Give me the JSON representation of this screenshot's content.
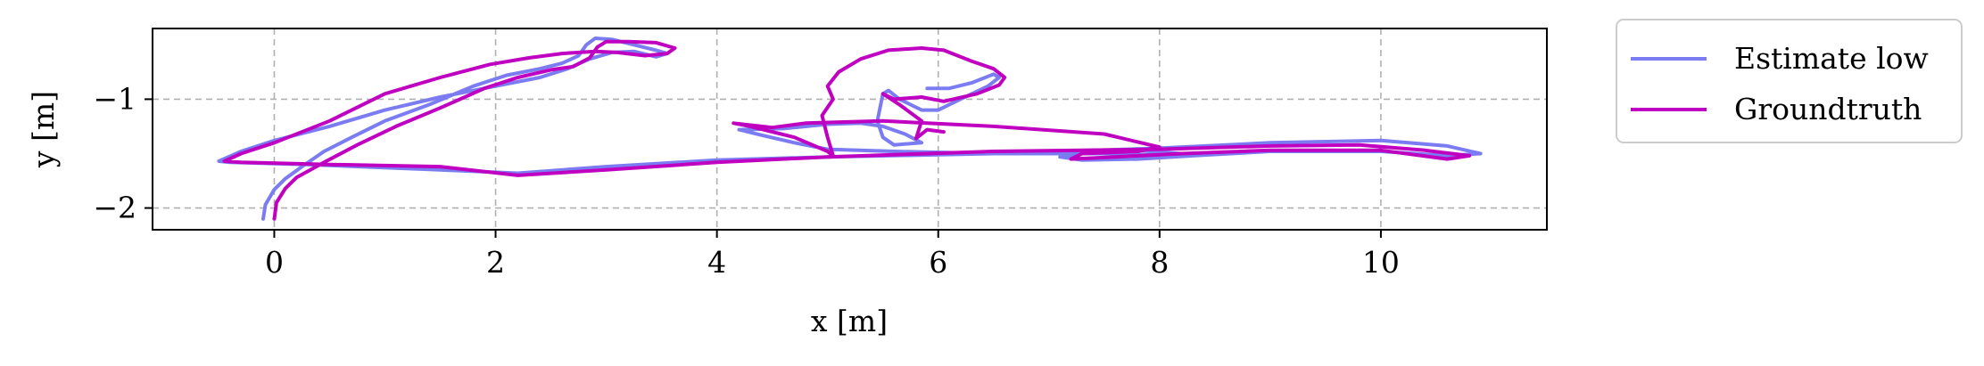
{
  "chart_data": {
    "type": "line",
    "xlabel": "x [m]",
    "ylabel": "y [m]",
    "xlim": [
      -1.1,
      11.5
    ],
    "ylim": [
      -2.2,
      -0.35
    ],
    "xticks": [
      0,
      2,
      4,
      6,
      8,
      10
    ],
    "yticks": [
      -2,
      -1
    ],
    "xtick_labels": [
      "0",
      "2",
      "4",
      "6",
      "8",
      "10"
    ],
    "ytick_labels": [
      "−2",
      "−1"
    ],
    "grid": true,
    "grid_style": "dashed",
    "legend_position": "outside upper right",
    "series": [
      {
        "name": "Estimate low",
        "color": "#7b7bf2",
        "points": [
          [
            -0.1,
            -2.1
          ],
          [
            -0.08,
            -1.97
          ],
          [
            0.0,
            -1.83
          ],
          [
            0.1,
            -1.73
          ],
          [
            0.25,
            -1.62
          ],
          [
            0.45,
            -1.48
          ],
          [
            0.7,
            -1.35
          ],
          [
            1.0,
            -1.2
          ],
          [
            1.4,
            -1.05
          ],
          [
            1.8,
            -0.88
          ],
          [
            2.1,
            -0.78
          ],
          [
            2.4,
            -0.72
          ],
          [
            2.6,
            -0.67
          ],
          [
            2.75,
            -0.6
          ],
          [
            2.82,
            -0.5
          ],
          [
            2.9,
            -0.44
          ],
          [
            3.05,
            -0.45
          ],
          [
            3.25,
            -0.5
          ],
          [
            3.45,
            -0.55
          ],
          [
            3.55,
            -0.58
          ],
          [
            3.45,
            -0.61
          ],
          [
            3.25,
            -0.56
          ],
          [
            3.05,
            -0.57
          ],
          [
            2.85,
            -0.63
          ],
          [
            2.65,
            -0.72
          ],
          [
            2.4,
            -0.8
          ],
          [
            2.0,
            -0.88
          ],
          [
            1.5,
            -0.98
          ],
          [
            1.0,
            -1.1
          ],
          [
            0.5,
            -1.25
          ],
          [
            0.0,
            -1.38
          ],
          [
            -0.3,
            -1.48
          ],
          [
            -0.5,
            -1.57
          ],
          [
            -0.4,
            -1.58
          ],
          [
            0.3,
            -1.6
          ],
          [
            1.5,
            -1.65
          ],
          [
            2.2,
            -1.68
          ],
          [
            3.0,
            -1.62
          ],
          [
            4.0,
            -1.56
          ],
          [
            5.0,
            -1.53
          ],
          [
            6.5,
            -1.5
          ],
          [
            8.0,
            -1.45
          ],
          [
            9.0,
            -1.4
          ],
          [
            10.0,
            -1.38
          ],
          [
            10.6,
            -1.43
          ],
          [
            10.9,
            -1.5
          ],
          [
            10.6,
            -1.52
          ],
          [
            10.0,
            -1.48
          ],
          [
            9.0,
            -1.48
          ],
          [
            8.3,
            -1.52
          ],
          [
            7.8,
            -1.55
          ],
          [
            7.3,
            -1.56
          ],
          [
            7.1,
            -1.53
          ],
          [
            7.3,
            -1.5
          ],
          [
            7.8,
            -1.47
          ],
          [
            8.2,
            -1.5
          ],
          [
            8.25,
            -1.52
          ],
          [
            7.5,
            -1.5
          ],
          [
            6.5,
            -1.5
          ],
          [
            5.6,
            -1.48
          ],
          [
            5.0,
            -1.46
          ],
          [
            4.7,
            -1.4
          ],
          [
            4.4,
            -1.33
          ],
          [
            4.2,
            -1.28
          ],
          [
            4.6,
            -1.27
          ],
          [
            5.0,
            -1.23
          ],
          [
            5.3,
            -1.22
          ],
          [
            5.5,
            -1.25
          ],
          [
            5.7,
            -1.32
          ],
          [
            5.85,
            -1.4
          ],
          [
            5.6,
            -1.42
          ],
          [
            5.5,
            -1.35
          ],
          [
            5.45,
            -1.2
          ],
          [
            5.5,
            -0.95
          ],
          [
            5.55,
            -0.92
          ],
          [
            5.65,
            -1.0
          ],
          [
            5.85,
            -1.1
          ],
          [
            6.0,
            -1.1
          ],
          [
            6.2,
            -1.0
          ],
          [
            6.45,
            -0.88
          ],
          [
            6.55,
            -0.8
          ],
          [
            6.5,
            -0.77
          ],
          [
            6.3,
            -0.85
          ],
          [
            6.1,
            -0.9
          ],
          [
            5.9,
            -0.9
          ]
        ]
      },
      {
        "name": "Groundtruth",
        "color": "#c000c0",
        "points": [
          [
            0.0,
            -2.1
          ],
          [
            0.02,
            -1.95
          ],
          [
            0.1,
            -1.82
          ],
          [
            0.2,
            -1.72
          ],
          [
            0.45,
            -1.58
          ],
          [
            0.75,
            -1.42
          ],
          [
            1.1,
            -1.25
          ],
          [
            1.5,
            -1.08
          ],
          [
            1.9,
            -0.9
          ],
          [
            2.2,
            -0.8
          ],
          [
            2.5,
            -0.73
          ],
          [
            2.7,
            -0.7
          ],
          [
            2.85,
            -0.62
          ],
          [
            2.92,
            -0.52
          ],
          [
            3.0,
            -0.47
          ],
          [
            3.2,
            -0.47
          ],
          [
            3.45,
            -0.48
          ],
          [
            3.62,
            -0.53
          ],
          [
            3.55,
            -0.58
          ],
          [
            3.35,
            -0.6
          ],
          [
            3.1,
            -0.57
          ],
          [
            2.9,
            -0.56
          ],
          [
            2.6,
            -0.58
          ],
          [
            2.3,
            -0.62
          ],
          [
            1.95,
            -0.68
          ],
          [
            1.5,
            -0.8
          ],
          [
            1.0,
            -0.95
          ],
          [
            0.5,
            -1.2
          ],
          [
            0.0,
            -1.4
          ],
          [
            -0.3,
            -1.5
          ],
          [
            -0.45,
            -1.57
          ],
          [
            -0.3,
            -1.58
          ],
          [
            0.5,
            -1.6
          ],
          [
            1.5,
            -1.62
          ],
          [
            2.2,
            -1.7
          ],
          [
            3.0,
            -1.65
          ],
          [
            4.0,
            -1.58
          ],
          [
            5.0,
            -1.53
          ],
          [
            6.5,
            -1.48
          ],
          [
            8.0,
            -1.46
          ],
          [
            9.0,
            -1.43
          ],
          [
            9.8,
            -1.42
          ],
          [
            10.4,
            -1.47
          ],
          [
            10.8,
            -1.52
          ],
          [
            10.6,
            -1.55
          ],
          [
            10.0,
            -1.47
          ],
          [
            9.0,
            -1.47
          ],
          [
            8.2,
            -1.5
          ],
          [
            7.6,
            -1.53
          ],
          [
            7.2,
            -1.55
          ],
          [
            7.3,
            -1.5
          ],
          [
            7.8,
            -1.48
          ],
          [
            8.0,
            -1.44
          ],
          [
            7.5,
            -1.32
          ],
          [
            6.5,
            -1.25
          ],
          [
            5.5,
            -1.2
          ],
          [
            4.8,
            -1.22
          ],
          [
            4.5,
            -1.26
          ],
          [
            4.15,
            -1.22
          ],
          [
            4.3,
            -1.25
          ],
          [
            4.7,
            -1.35
          ],
          [
            5.0,
            -1.48
          ],
          [
            5.05,
            -1.52
          ],
          [
            5.0,
            -1.35
          ],
          [
            4.95,
            -1.15
          ],
          [
            5.05,
            -1.0
          ],
          [
            5.0,
            -0.88
          ],
          [
            5.1,
            -0.75
          ],
          [
            5.3,
            -0.63
          ],
          [
            5.55,
            -0.55
          ],
          [
            5.85,
            -0.53
          ],
          [
            6.05,
            -0.55
          ],
          [
            6.3,
            -0.65
          ],
          [
            6.5,
            -0.72
          ],
          [
            6.6,
            -0.8
          ],
          [
            6.55,
            -0.87
          ],
          [
            6.35,
            -0.95
          ],
          [
            6.05,
            -1.02
          ],
          [
            5.85,
            -0.98
          ],
          [
            5.6,
            -1.0
          ],
          [
            5.5,
            -0.95
          ],
          [
            5.65,
            -1.05
          ],
          [
            5.85,
            -1.2
          ],
          [
            5.8,
            -1.36
          ],
          [
            5.9,
            -1.28
          ],
          [
            6.05,
            -1.3
          ]
        ]
      }
    ]
  }
}
